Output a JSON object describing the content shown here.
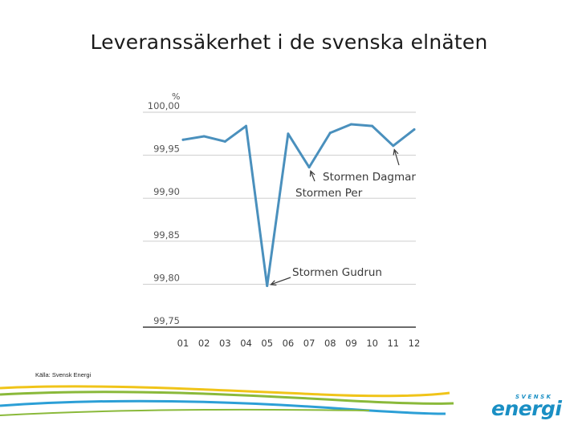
{
  "title": "Leveranssäkerhet i de svenska elnäten",
  "source": "Källa: Svensk Energi",
  "logo": {
    "small": "SVENSK",
    "big": "energi"
  },
  "colors": {
    "line": "#4a90bd",
    "grid": "#c8c8c8",
    "axis": "#3a3a3a",
    "text": "#555555",
    "annotation": "#3a3a3a",
    "logo": "#1a8fc4",
    "swoosh_green": "#8ab93a",
    "swoosh_yellow": "#f0c419",
    "swoosh_blue": "#2c9fd6"
  },
  "chart_data": {
    "type": "line",
    "title": "",
    "ylabel": "%",
    "xlabel": "",
    "categories": [
      "01",
      "02",
      "03",
      "04",
      "05",
      "06",
      "07",
      "08",
      "09",
      "10",
      "11",
      "12"
    ],
    "series": [
      {
        "name": "Leveranssäkerhet",
        "values": [
          99.968,
          99.972,
          99.966,
          99.984,
          99.798,
          99.975,
          99.936,
          99.976,
          99.986,
          99.984,
          99.961,
          99.98
        ]
      }
    ],
    "yticks": [
      100.0,
      99.95,
      99.9,
      99.85,
      99.8,
      99.75
    ],
    "ytick_labels": [
      "100,00",
      "99,95",
      "99,90",
      "99,85",
      "99,80",
      "99,75"
    ],
    "ylim": [
      99.75,
      100.0
    ],
    "grid": true,
    "annotations": [
      {
        "text": "Stormen Gudrun",
        "category": "05",
        "value": 99.798
      },
      {
        "text": "Stormen Per",
        "category": "07",
        "value": 99.936
      },
      {
        "text": "Stormen Dagmar",
        "category": "11",
        "value": 99.961
      }
    ]
  }
}
